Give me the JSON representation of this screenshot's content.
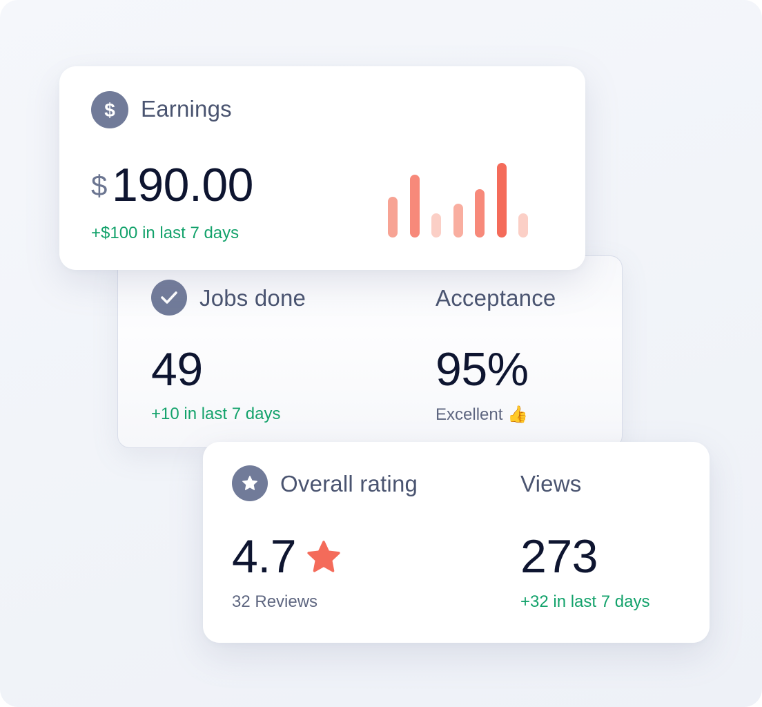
{
  "earnings": {
    "icon": "dollar-icon",
    "label": "Earnings",
    "currency_symbol": "$",
    "amount": "190.00",
    "change": "+$100 in last 7 days",
    "bars": [
      {
        "level": 0.55,
        "color": "#f7a394"
      },
      {
        "level": 0.84,
        "color": "#f7897a"
      },
      {
        "level": 0.32,
        "color": "#fbcfc6"
      },
      {
        "level": 0.45,
        "color": "#f9aea0"
      },
      {
        "level": 0.65,
        "color": "#f7897a"
      },
      {
        "level": 1.0,
        "color": "#f46b5a"
      },
      {
        "level": 0.32,
        "color": "#fbcfc6"
      }
    ]
  },
  "jobs": {
    "icon": "check-icon",
    "label": "Jobs done",
    "value": "49",
    "change": "+10 in last 7 days"
  },
  "acceptance": {
    "label": "Acceptance",
    "value": "95%",
    "note": "Excellent 👍"
  },
  "rating": {
    "icon": "star-icon",
    "label": "Overall rating",
    "value": "4.7",
    "value_icon": "star-icon",
    "reviews": "32 Reviews"
  },
  "views": {
    "label": "Views",
    "value": "273",
    "change": "+32 in last 7 days"
  },
  "colors": {
    "accent_green": "#13a26b",
    "accent_coral": "#f46b5a",
    "icon_bg": "#717b99",
    "heading": "#0e1530"
  }
}
